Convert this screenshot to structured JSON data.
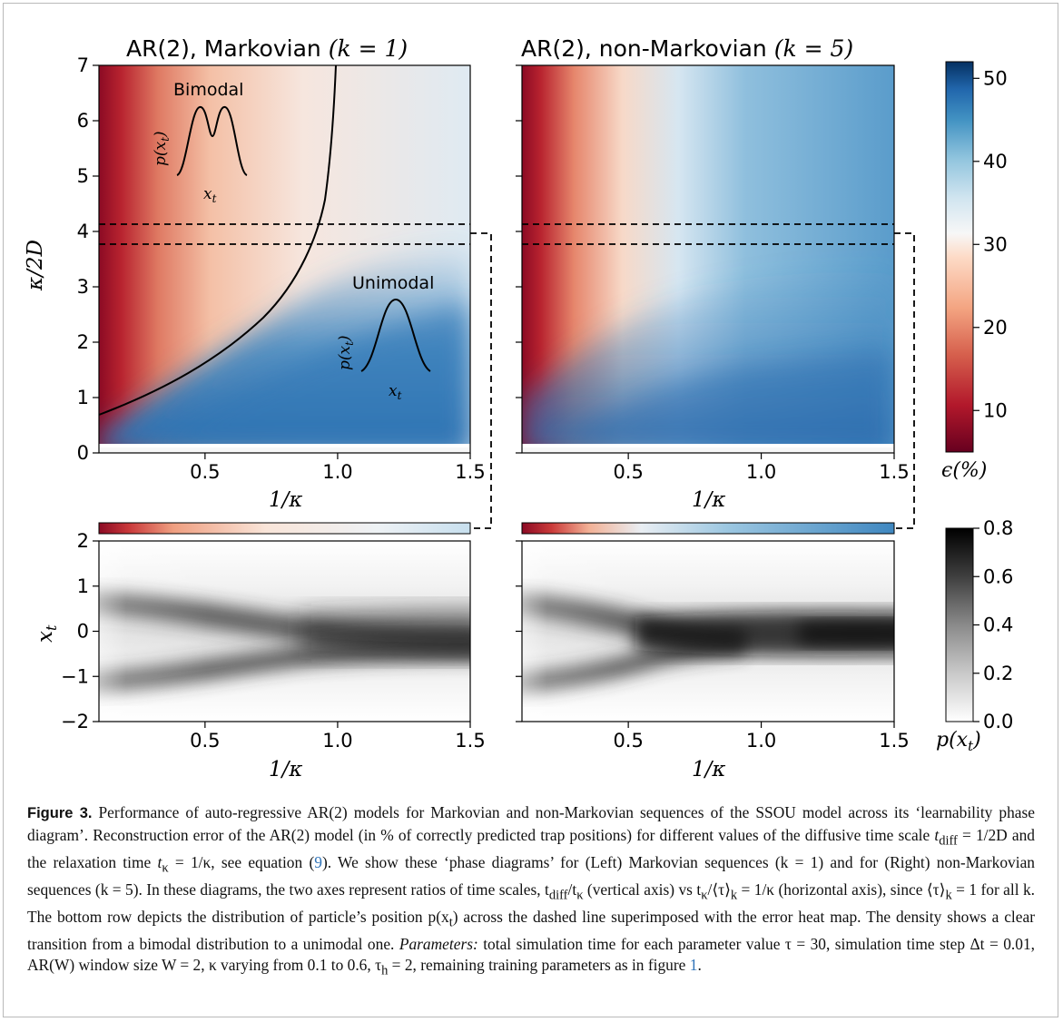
{
  "panels": {
    "left_title": "AR(2), Markovian",
    "left_title_math": "(k = 1)",
    "right_title": "AR(2), non-Markovian",
    "right_title_math": "(k = 5)",
    "y_label_top": "κ/2D",
    "x_label": "1/κ",
    "y_label_bottom": "x",
    "y_label_bottom_sub": "t",
    "colorbar_top_label": "ϵ(%)",
    "colorbar_bottom_label": "p(x",
    "colorbar_bottom_label_tail": ")",
    "annot_bimodal": "Bimodal",
    "annot_unimodal": "Unimodal",
    "annot_p": "p(x",
    "annot_x": "x",
    "annot_sub": "t",
    "annot_paren": ")"
  },
  "axes": {
    "x_ticks": [
      "0.5",
      "1.0",
      "1.5"
    ],
    "y_ticks_top": [
      "0",
      "1",
      "2",
      "3",
      "4",
      "5",
      "6",
      "7"
    ],
    "y_ticks_bottom": [
      "−2",
      "−1",
      "0",
      "1",
      "2"
    ],
    "cbar_top_ticks": [
      "10",
      "20",
      "30",
      "40",
      "50"
    ],
    "cbar_bottom_ticks": [
      "0.0",
      "0.2",
      "0.4",
      "0.6",
      "0.8"
    ]
  },
  "colors": {
    "low_error": "#67001f",
    "mid_error": "#f7f7f7",
    "high_error": "#053061",
    "density_high": "#000000"
  },
  "chart_data": [
    {
      "type": "heatmap",
      "title": "AR(2), Markovian (k = 1)",
      "xlabel": "1/κ",
      "ylabel": "κ/2D",
      "xlim": [
        0.1,
        1.5
      ],
      "ylim": [
        0,
        7
      ],
      "colorbar": {
        "label": "ϵ(%)",
        "range": [
          5,
          52
        ]
      },
      "dashed_band": [
        3.75,
        4.1
      ],
      "boundary_curve": "κ/2D = 2.5·(1/κ)^2 / ... (transition line, approx. points)",
      "boundary_points": [
        [
          0.1,
          0.65
        ],
        [
          0.3,
          1.2
        ],
        [
          0.5,
          2.0
        ],
        [
          0.7,
          3.0
        ],
        [
          0.8,
          3.6
        ],
        [
          0.88,
          4.1
        ],
        [
          0.95,
          5.0
        ],
        [
          1.0,
          7.0
        ]
      ],
      "regions": [
        "Bimodal",
        "Unimodal"
      ]
    },
    {
      "type": "heatmap",
      "title": "AR(2), non-Markovian (k = 5)",
      "xlabel": "1/κ",
      "ylabel": "κ/2D",
      "xlim": [
        0.1,
        1.5
      ],
      "ylim": [
        0,
        7
      ],
      "colorbar": {
        "label": "ϵ(%)",
        "range": [
          5,
          52
        ]
      },
      "dashed_band": [
        3.75,
        4.1
      ]
    },
    {
      "type": "heatmap",
      "xlabel": "1/κ",
      "ylabel": "x_t",
      "xlim": [
        0.1,
        1.5
      ],
      "ylim": [
        -2,
        2
      ],
      "colorbar": {
        "label": "p(x_t)",
        "range": [
          0,
          0.8
        ]
      }
    },
    {
      "type": "heatmap",
      "xlabel": "1/κ",
      "ylim": [
        -2,
        2
      ],
      "xlim": [
        0.1,
        1.5
      ],
      "colorbar": {
        "label": "p(x_t)",
        "range": [
          0,
          0.8
        ]
      }
    }
  ],
  "caption": {
    "label": "Figure 3.",
    "s1": " Performance of auto-regressive AR(2) models for Markovian and non-Markovian sequences of the SSOU model across its ‘learnability phase diagram’. Reconstruction error of the AR(2) model (in % of correctly predicted trap positions) for different values of the diffusive time scale ",
    "tdiff": "t",
    "tdiff_sub": "diff",
    "s2": " = 1/2D and the relaxation time ",
    "tk": "t",
    "tk_sub": "κ",
    "s3": " = 1/κ, see equation (",
    "ref_eq": "9",
    "s4": "). We show these ‘phase diagrams’ for (Left) Markovian sequences (k = 1) and for (Right) non-Markovian sequences (k = 5). In these diagrams, the two axes represent ratios of time scales, t",
    "s5": "/t",
    "s6": " (vertical axis) vs t",
    "s7": "/⟨τ⟩",
    "s7_sub": "k",
    "s8": " = 1/κ (horizontal axis), since ⟨τ⟩",
    "s9": " = 1 for all k. The bottom row depicts the distribution of particle’s position p(x",
    "s9_sub": "t",
    "s10": ") across the dashed line superimposed with the error heat map. The density shows a clear transition from a bimodal distribution to a unimodal one. ",
    "params_label": "Parameters:",
    "s11": " total simulation time for each parameter value τ = 30, simulation time step Δt = 0.01, AR(W) window size W = 2, κ varying from 0.1 to 0.6, τ",
    "s11_sub": "h",
    "s12": " = 2, remaining training parameters as in figure ",
    "ref_fig": "1",
    "s13": "."
  }
}
